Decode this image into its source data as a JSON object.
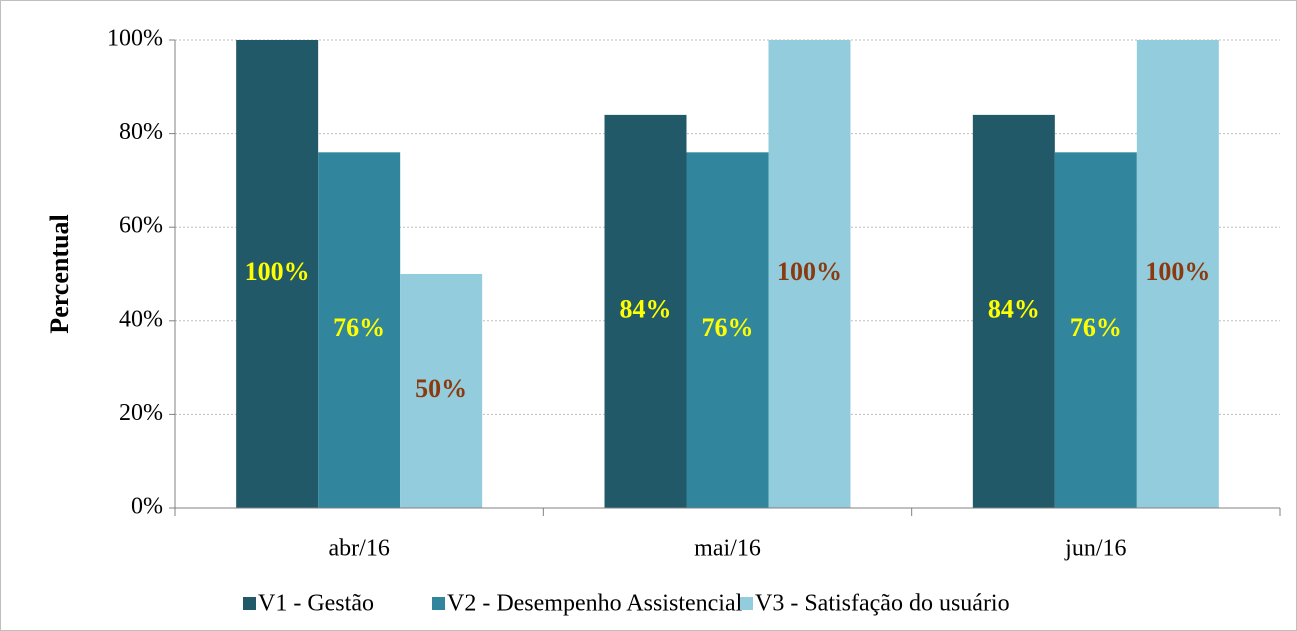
{
  "chart_data": {
    "type": "bar",
    "y_label": "Percentual",
    "categories": [
      "abr/16",
      "mai/16",
      "jun/16"
    ],
    "series": [
      {
        "name": "V1 - Gestão",
        "color": "#215968",
        "label_color": "#ffff00",
        "values": [
          100,
          84,
          84
        ],
        "value_labels": [
          "100%",
          "84%",
          "84%"
        ]
      },
      {
        "name": "V2 - Desempenho Assistencial",
        "color": "#31859c",
        "label_color": "#ffff00",
        "values": [
          76,
          76,
          76
        ],
        "value_labels": [
          "76%",
          "76%",
          "76%"
        ]
      },
      {
        "name": "V3 - Satisfação do usuário",
        "color": "#93cddd",
        "label_color": "#8b3a0f",
        "values": [
          50,
          100,
          100
        ],
        "value_labels": [
          "50%",
          "100%",
          "100%"
        ]
      }
    ],
    "ylim": [
      0,
      100
    ],
    "yticks": [
      {
        "value": 0,
        "label": "0%"
      },
      {
        "value": 20,
        "label": "20%"
      },
      {
        "value": 40,
        "label": "40%"
      },
      {
        "value": 60,
        "label": "60%"
      },
      {
        "value": 80,
        "label": "80%"
      },
      {
        "value": 100,
        "label": "100%"
      }
    ],
    "grid": true,
    "legend": "bottom"
  }
}
